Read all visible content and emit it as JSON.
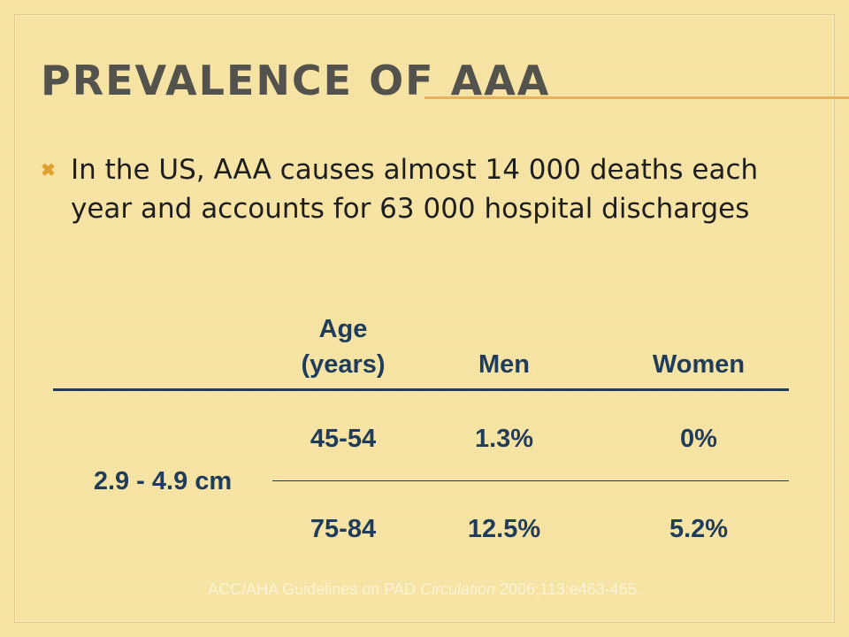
{
  "slide": {
    "title": "Prevalence of AAA",
    "bullet_icon": "x-bullet-icon",
    "bullet_text": "In the US, AAA causes almost 14 000 deaths each year and accounts for 63 000 hospital discharges",
    "accent_color": "#e8b15a",
    "text_color": "#1f3c5c"
  },
  "table": {
    "headers": {
      "age_line1": "Age",
      "age_line2": "(years)",
      "men": "Men",
      "women": "Women"
    },
    "size_label": "2.9 - 4.9 cm",
    "rows": [
      {
        "age": "45-54",
        "men": "1.3%",
        "women": "0%"
      },
      {
        "age": "75-84",
        "men": "12.5%",
        "women": "5.2%"
      }
    ]
  },
  "citation": {
    "prefix": "ACC/AHA Guidelines on PAD ",
    "journal": "Circulation",
    "suffix": " 2006;113:e463-465."
  }
}
